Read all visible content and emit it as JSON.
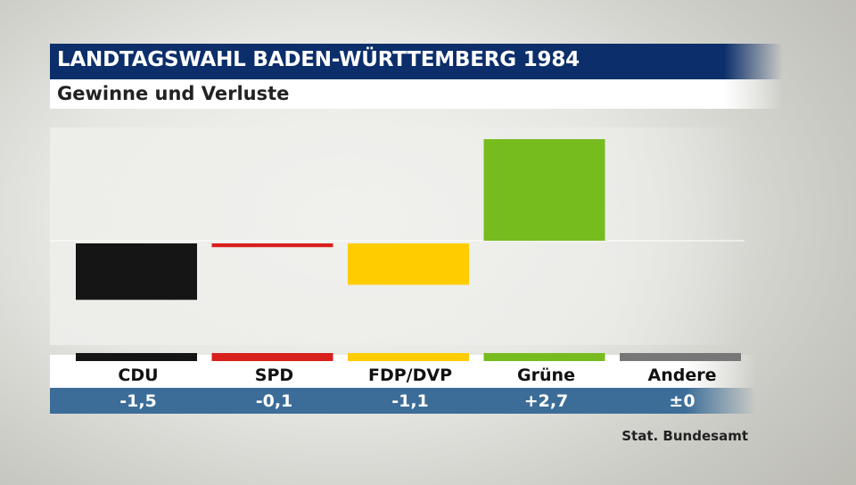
{
  "header": {
    "title": "LANDTAGSWAHL BADEN-WÜRTTEMBERG 1984",
    "subtitle": "Gewinne und Verluste"
  },
  "source": "Stat. Bundesamt",
  "chart_data": {
    "type": "bar",
    "categories": [
      "CDU",
      "SPD",
      "FDP/DVP",
      "Grüne",
      "Andere"
    ],
    "values": [
      -1.5,
      -0.1,
      -1.1,
      2.7,
      0
    ],
    "value_labels": [
      "-1,5",
      "-0,1",
      "-1,1",
      "+2,7",
      "±0"
    ],
    "colors": [
      "#151515",
      "#d8201c",
      "#ffcc00",
      "#77bc1f",
      "#777777"
    ],
    "baseline_color": "#ffffff"
  }
}
